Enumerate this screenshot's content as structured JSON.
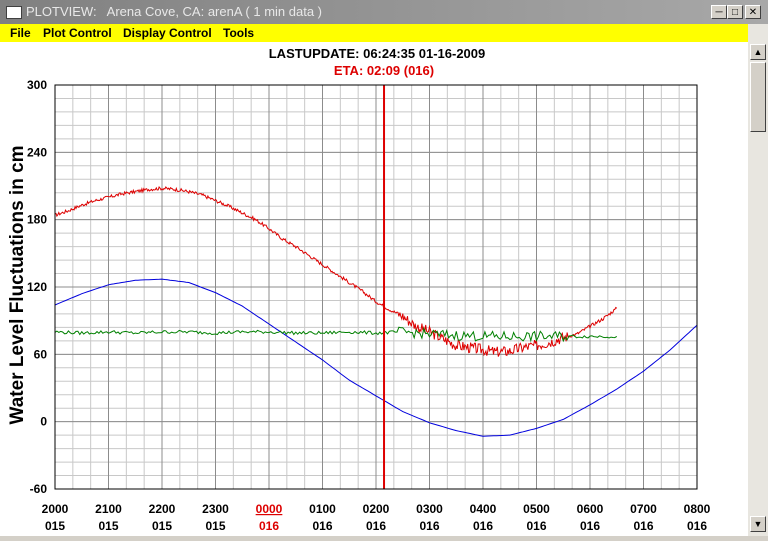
{
  "window": {
    "title": "PLOTVIEW:   Arena Cove, CA: arenA ( 1 min data )",
    "minimize_icon": "minimize-icon",
    "maximize_icon": "maximize-icon",
    "close_icon": "close-icon"
  },
  "menu": {
    "items": [
      "File",
      "Plot Control",
      "Display Control",
      "Tools"
    ],
    "background": "#ffff00"
  },
  "scrollbar": {
    "up_icon": "arrow-up-icon",
    "down_icon": "arrow-down-icon"
  },
  "chart_data": {
    "type": "line",
    "header": "LASTUPDATE: 06:24:35  01-16-2009",
    "eta_label": "ETA: 02:09 (016)",
    "ylabel": "Water Level Fluctuations in cm",
    "ylim": [
      -60,
      300
    ],
    "yticks": [
      300,
      240,
      180,
      120,
      60,
      0,
      -60
    ],
    "xlim": [
      0,
      12
    ],
    "xticks": [
      {
        "hour": "2000",
        "day": "015"
      },
      {
        "hour": "2100",
        "day": "015"
      },
      {
        "hour": "2200",
        "day": "015"
      },
      {
        "hour": "2300",
        "day": "015"
      },
      {
        "hour": "0000",
        "day": "016",
        "highlight": true
      },
      {
        "hour": "0100",
        "day": "016"
      },
      {
        "hour": "0200",
        "day": "016"
      },
      {
        "hour": "0300",
        "day": "016"
      },
      {
        "hour": "0400",
        "day": "016"
      },
      {
        "hour": "0500",
        "day": "016"
      },
      {
        "hour": "0600",
        "day": "016"
      },
      {
        "hour": "0700",
        "day": "016"
      },
      {
        "hour": "0800",
        "day": "016"
      }
    ],
    "grid": true,
    "eta_x": 6.15,
    "colors": {
      "observed": "#dd0000",
      "predicted": "#0000dd",
      "residual": "#008000",
      "eta": "#dd0000",
      "highlight_tick": "#dd0000"
    },
    "series": [
      {
        "color": "#dd0000",
        "x": [
          0,
          0.25,
          0.5,
          0.75,
          1,
          1.25,
          1.5,
          1.75,
          2,
          2.25,
          2.5,
          2.75,
          3,
          3.25,
          3.5,
          3.75,
          4,
          4.25,
          4.5,
          4.75,
          5,
          5.25,
          5.5,
          5.75,
          6,
          6.25,
          6.5,
          6.75,
          7,
          7.25,
          7.5,
          7.75,
          8,
          8.25,
          8.5,
          8.75,
          9,
          9.25,
          9.5,
          9.75,
          10,
          10.25,
          10.5
        ],
        "y": [
          184,
          188,
          193,
          197,
          200,
          203,
          205,
          207,
          208,
          207,
          205,
          202,
          197,
          192,
          186,
          180,
          172,
          163,
          156,
          148,
          140,
          132,
          124,
          116,
          107,
          100,
          94,
          85,
          80,
          74,
          68,
          66,
          64,
          62,
          63,
          66,
          68,
          71,
          75,
          78,
          85,
          92,
          101
        ]
      },
      {
        "color": "#0000dd",
        "x": [
          0,
          0.5,
          1,
          1.5,
          2,
          2.5,
          3,
          3.5,
          4,
          4.5,
          5,
          5.5,
          6,
          6.5,
          7,
          7.5,
          8,
          8.5,
          9,
          9.5,
          10,
          10.5,
          11,
          11.5,
          12
        ],
        "y": [
          104,
          114,
          122,
          126,
          127,
          124,
          115,
          103,
          87,
          71,
          55,
          37,
          23,
          9,
          -1,
          -8,
          -13,
          -12,
          -6,
          2,
          15,
          29,
          45,
          64,
          86
        ]
      },
      {
        "color": "#008000",
        "x": [
          0,
          0.5,
          1,
          1.5,
          2,
          2.5,
          3,
          3.5,
          4,
          4.5,
          5,
          5.5,
          6,
          6.5,
          7,
          7.5,
          8,
          8.5,
          9,
          9.5,
          10,
          10.5
        ],
        "y": [
          80,
          79,
          80,
          79,
          80,
          80,
          79,
          80,
          80,
          79,
          79,
          80,
          79,
          80,
          78,
          77,
          76,
          76,
          76,
          76,
          76,
          76
        ]
      }
    ]
  }
}
